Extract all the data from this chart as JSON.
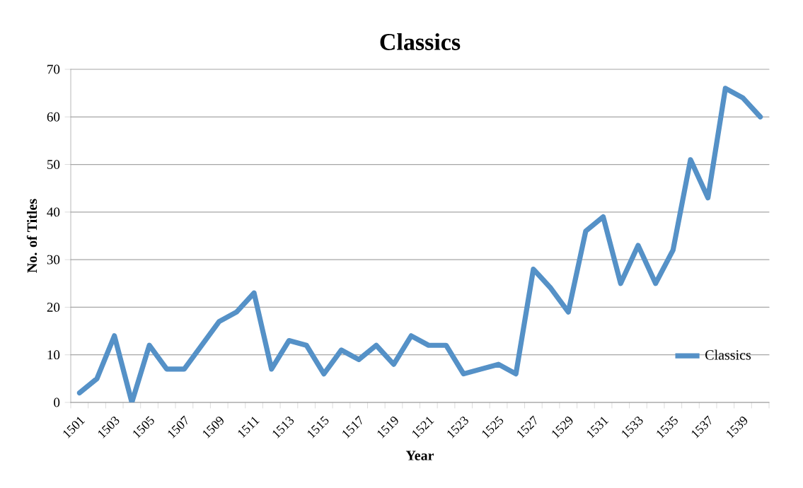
{
  "chart_data": {
    "type": "line",
    "title": "Classics",
    "xlabel": "Year",
    "ylabel": "No. of Titles",
    "categories": [
      "1501",
      null,
      "1503",
      null,
      "1505",
      null,
      "1507",
      null,
      "1509",
      null,
      "1511",
      null,
      "1513",
      null,
      "1515",
      null,
      "1517",
      null,
      "1519",
      null,
      "1521",
      null,
      "1523",
      null,
      "1525",
      null,
      "1527",
      null,
      "1529",
      null,
      "1531",
      null,
      "1533",
      null,
      "1535",
      null,
      "1537",
      null,
      "1539",
      null
    ],
    "series": [
      {
        "name": "Classics",
        "color": "#5591c7",
        "values": [
          2,
          5,
          14,
          0,
          12,
          7,
          7,
          12,
          17,
          19,
          23,
          7,
          13,
          12,
          6,
          11,
          9,
          12,
          8,
          14,
          12,
          12,
          6,
          7,
          8,
          6,
          28,
          24,
          19,
          36,
          39,
          25,
          33,
          25,
          32,
          51,
          43,
          66,
          64,
          60
        ]
      }
    ],
    "ylim": [
      0,
      70
    ],
    "yticks": [
      0,
      10,
      20,
      30,
      40,
      50,
      60,
      70
    ],
    "grid": "y",
    "legend": "right",
    "marker": "none",
    "line_style": "solid"
  }
}
